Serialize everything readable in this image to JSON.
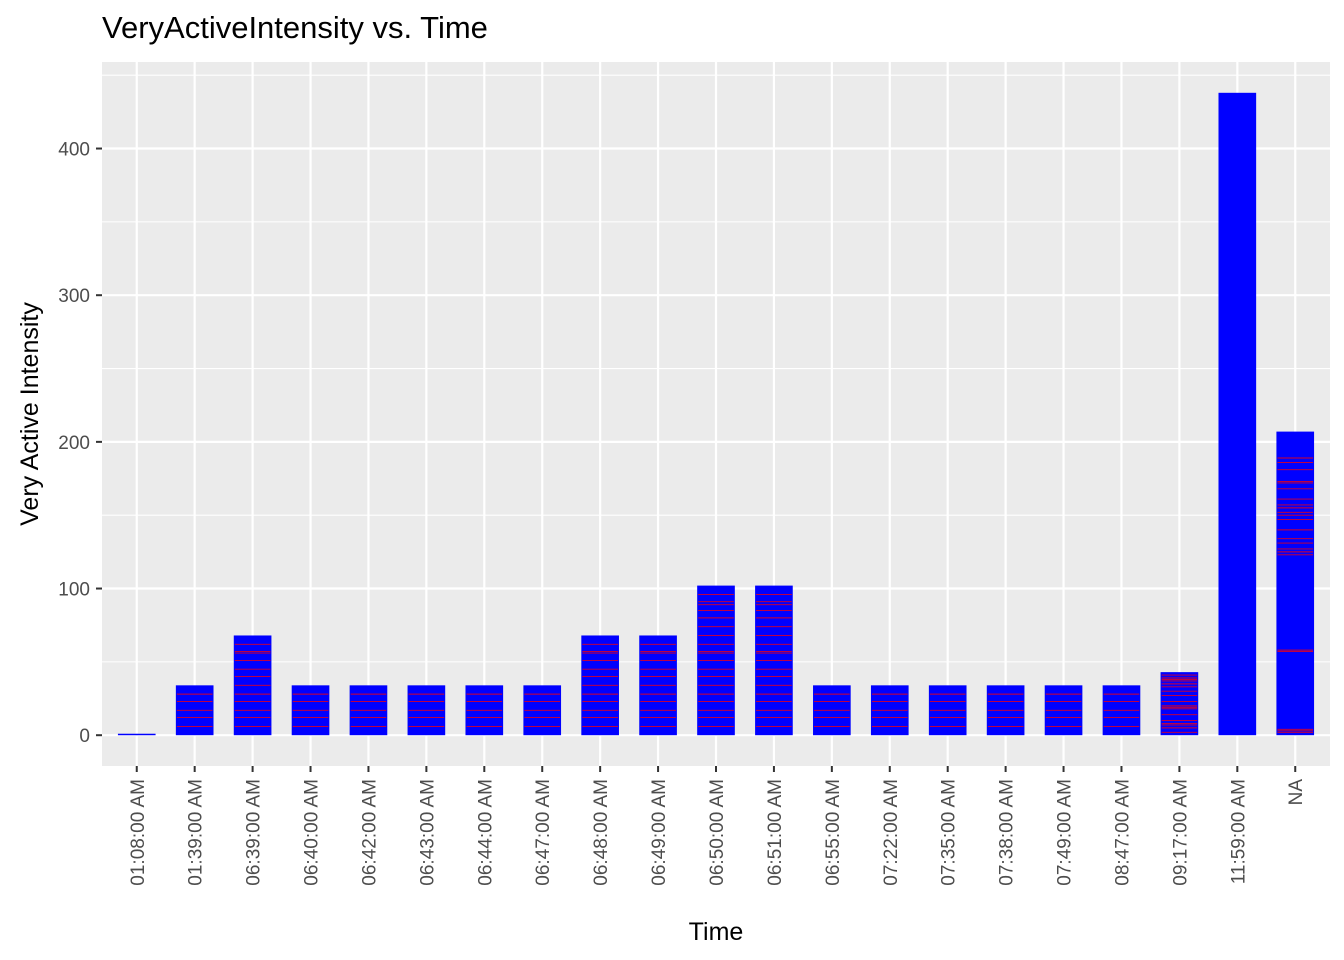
{
  "chart_data": {
    "type": "bar",
    "title": "VeryActiveIntensity vs. Time",
    "xlabel": "Time",
    "ylabel": "Very Active Intensity",
    "categories": [
      "01:08:00 AM",
      "01:39:00 AM",
      "06:39:00 AM",
      "06:40:00 AM",
      "06:42:00 AM",
      "06:43:00 AM",
      "06:44:00 AM",
      "06:47:00 AM",
      "06:48:00 AM",
      "06:49:00 AM",
      "06:50:00 AM",
      "06:51:00 AM",
      "06:55:00 AM",
      "07:22:00 AM",
      "07:35:00 AM",
      "07:38:00 AM",
      "07:49:00 AM",
      "08:47:00 AM",
      "09:17:00 AM",
      "11:59:00 AM",
      "NA"
    ],
    "values": [
      1,
      34,
      68,
      34,
      34,
      34,
      34,
      34,
      68,
      68,
      102,
      102,
      34,
      34,
      34,
      34,
      34,
      34,
      43,
      438,
      207
    ],
    "stack_boundaries": [
      [],
      [
        6,
        12,
        17,
        23,
        28
      ],
      [
        6,
        12,
        17,
        23,
        28,
        34,
        40,
        45,
        51,
        56,
        57,
        62
      ],
      [
        6,
        12,
        17,
        23,
        28
      ],
      [
        6,
        12,
        17,
        23,
        28
      ],
      [
        6,
        12,
        17,
        23,
        28
      ],
      [
        6,
        12,
        17,
        23,
        28
      ],
      [
        6,
        12,
        17,
        23,
        28
      ],
      [
        6,
        12,
        17,
        23,
        28,
        34,
        40,
        45,
        51,
        56,
        57,
        62
      ],
      [
        6,
        12,
        17,
        23,
        28,
        34,
        40,
        45,
        51,
        56,
        57,
        62
      ],
      [
        6,
        12,
        17,
        23,
        28,
        34,
        40,
        45,
        51,
        56,
        57,
        62,
        68,
        74,
        80,
        85,
        89,
        91,
        96
      ],
      [
        6,
        12,
        17,
        23,
        28,
        34,
        40,
        45,
        51,
        56,
        57,
        62,
        68,
        74,
        80,
        85,
        89,
        91,
        96
      ],
      [
        6,
        12,
        17,
        23,
        28
      ],
      [
        6,
        12,
        17,
        23,
        28
      ],
      [
        6,
        12,
        17,
        23,
        28
      ],
      [
        6,
        12,
        17,
        23,
        28
      ],
      [
        6,
        12,
        17,
        23,
        28
      ],
      [
        6,
        12,
        17,
        23,
        28
      ],
      [
        2,
        5,
        7,
        8,
        10,
        14,
        18,
        19,
        20,
        23,
        27,
        30,
        33,
        35,
        37,
        38,
        39,
        41
      ],
      [],
      [
        2,
        3,
        4,
        57,
        58,
        123,
        125,
        127,
        131,
        134,
        140,
        147,
        150,
        152,
        155,
        157,
        161,
        168,
        172,
        173,
        181,
        186,
        189
      ]
    ],
    "ylim": [
      -21,
      459
    ],
    "yticks": [
      0,
      100,
      200,
      300,
      400
    ],
    "grid": true,
    "legend": "none",
    "colors": {
      "bar_fill": "#0000ff",
      "segment_line": "#ff0000",
      "panel_background": "#ebebeb",
      "grid_line": "#ffffff",
      "tick_text": "#4d4d4d"
    }
  }
}
